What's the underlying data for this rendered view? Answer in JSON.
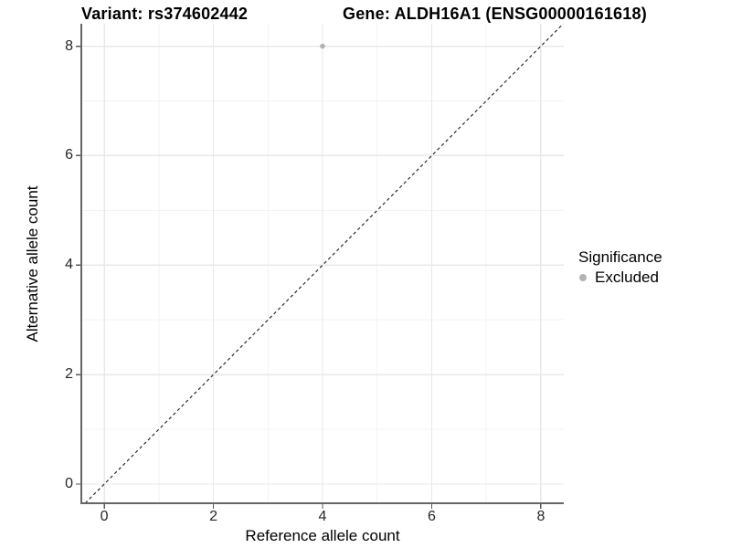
{
  "chart_data": {
    "type": "scatter",
    "title_left": "Variant: rs374602442",
    "title_right": "Gene: ALDH16A1 (ENSG00000161618)",
    "xlabel": "Reference allele count",
    "ylabel": "Alternative allele count",
    "x_ticks": [
      0,
      2,
      4,
      6,
      8
    ],
    "y_ticks": [
      0,
      2,
      4,
      6,
      8
    ],
    "x_minor_ticks": [
      1,
      3,
      5,
      7
    ],
    "y_minor_ticks": [
      1,
      3,
      5,
      7
    ],
    "xlim": [
      -0.42,
      8.42
    ],
    "ylim": [
      -0.35,
      8.41
    ],
    "grid": true,
    "background": "#ffffff",
    "series": [
      {
        "name": "Excluded",
        "color": "#b3b3b3",
        "points": [
          {
            "x": 4,
            "y": 8
          }
        ]
      }
    ],
    "reference_line": {
      "description": "identity line y = x",
      "slope": 1,
      "intercept": 0,
      "style": "dashed",
      "color": "#1a1a1a"
    },
    "legend": {
      "title": "Significance",
      "position": "right",
      "items": [
        {
          "label": "Excluded",
          "color": "#b3b3b3"
        }
      ]
    }
  }
}
